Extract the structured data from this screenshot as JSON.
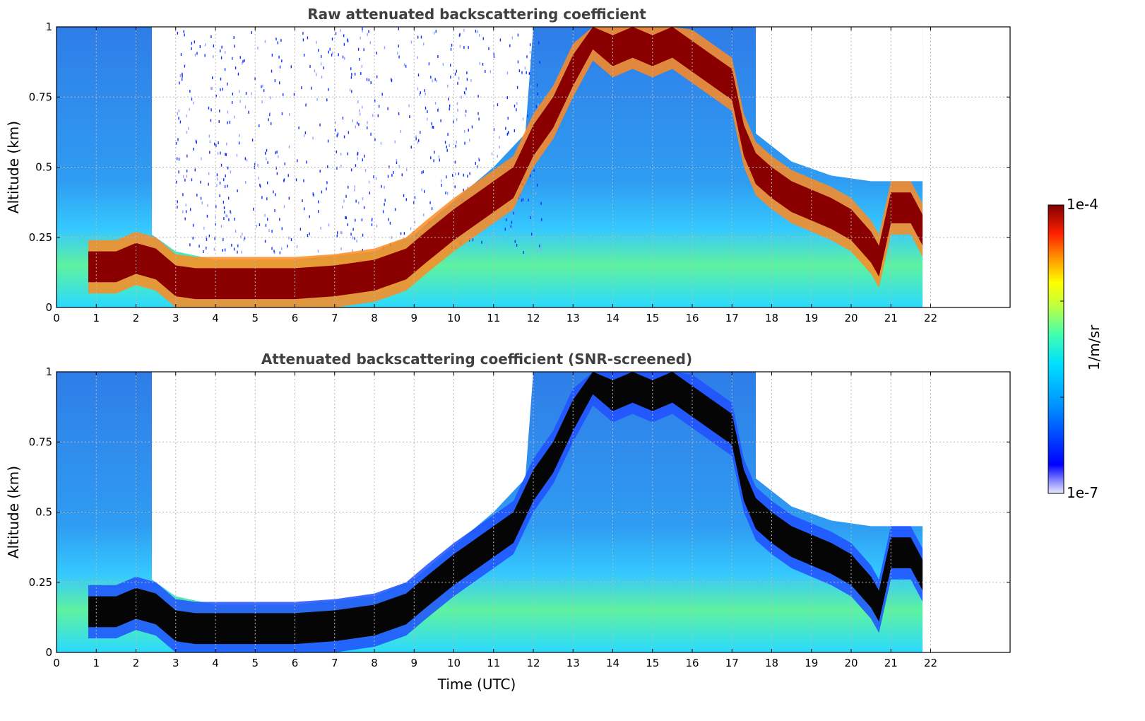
{
  "chart_data": [
    {
      "type": "heatmap",
      "title": "Raw attenuated backscattering coefficient",
      "ylabel": "Altitude (km)",
      "xlabel": "",
      "xlim": [
        0,
        24
      ],
      "ylim": [
        0,
        1
      ],
      "x_ticks": [
        "0",
        "1",
        "2",
        "3",
        "4",
        "5",
        "6",
        "7",
        "8",
        "9",
        "10",
        "11",
        "12",
        "13",
        "14",
        "15",
        "16",
        "17",
        "18",
        "19",
        "20",
        "21",
        "22"
      ],
      "y_ticks": [
        "0",
        "0.25",
        "0.5",
        "0.75",
        "1"
      ],
      "grid": true,
      "data_end_time": 21.8,
      "strong_layer_km": [
        [
          0.8,
          0.15
        ],
        [
          1.5,
          0.15
        ],
        [
          2.0,
          0.18
        ],
        [
          2.5,
          0.16
        ],
        [
          3.0,
          0.1
        ],
        [
          3.5,
          0.09
        ],
        [
          4.0,
          0.09
        ],
        [
          5.0,
          0.09
        ],
        [
          6.0,
          0.09
        ],
        [
          7.0,
          0.1
        ],
        [
          8.0,
          0.12
        ],
        [
          8.8,
          0.16
        ],
        [
          9.3,
          0.22
        ],
        [
          10.0,
          0.3
        ],
        [
          10.5,
          0.35
        ],
        [
          11.0,
          0.4
        ],
        [
          11.5,
          0.45
        ],
        [
          12.0,
          0.6
        ],
        [
          12.5,
          0.7
        ],
        [
          13.0,
          0.85
        ],
        [
          13.5,
          0.98
        ],
        [
          14.0,
          0.92
        ],
        [
          14.5,
          0.95
        ],
        [
          15.0,
          0.92
        ],
        [
          15.5,
          0.95
        ],
        [
          16.0,
          0.9
        ],
        [
          16.5,
          0.85
        ],
        [
          17.0,
          0.8
        ],
        [
          17.3,
          0.6
        ],
        [
          17.6,
          0.5
        ],
        [
          18.0,
          0.45
        ],
        [
          18.5,
          0.4
        ],
        [
          19.0,
          0.37
        ],
        [
          19.5,
          0.34
        ],
        [
          20.0,
          0.3
        ],
        [
          20.5,
          0.22
        ],
        [
          20.7,
          0.17
        ],
        [
          21.0,
          0.36
        ],
        [
          21.5,
          0.36
        ],
        [
          21.8,
          0.28
        ]
      ]
    },
    {
      "type": "heatmap",
      "title": "Attenuated backscattering coefficient (SNR-screened)",
      "ylabel": "Altitude (km)",
      "xlabel": "Time (UTC)",
      "xlim": [
        0,
        24
      ],
      "ylim": [
        0,
        1
      ],
      "x_ticks": [
        "0",
        "1",
        "2",
        "3",
        "4",
        "5",
        "6",
        "7",
        "8",
        "9",
        "10",
        "11",
        "12",
        "13",
        "14",
        "15",
        "16",
        "17",
        "18",
        "19",
        "20",
        "21",
        "22"
      ],
      "y_ticks": [
        "0",
        "0.25",
        "0.5",
        "0.75",
        "1"
      ],
      "grid": true,
      "data_end_time": 21.8
    }
  ],
  "colorbar": {
    "label": "1/m/sr",
    "min_label": "1e-7",
    "max_label": "1e-4",
    "scale": "log",
    "colormap": "jet"
  }
}
